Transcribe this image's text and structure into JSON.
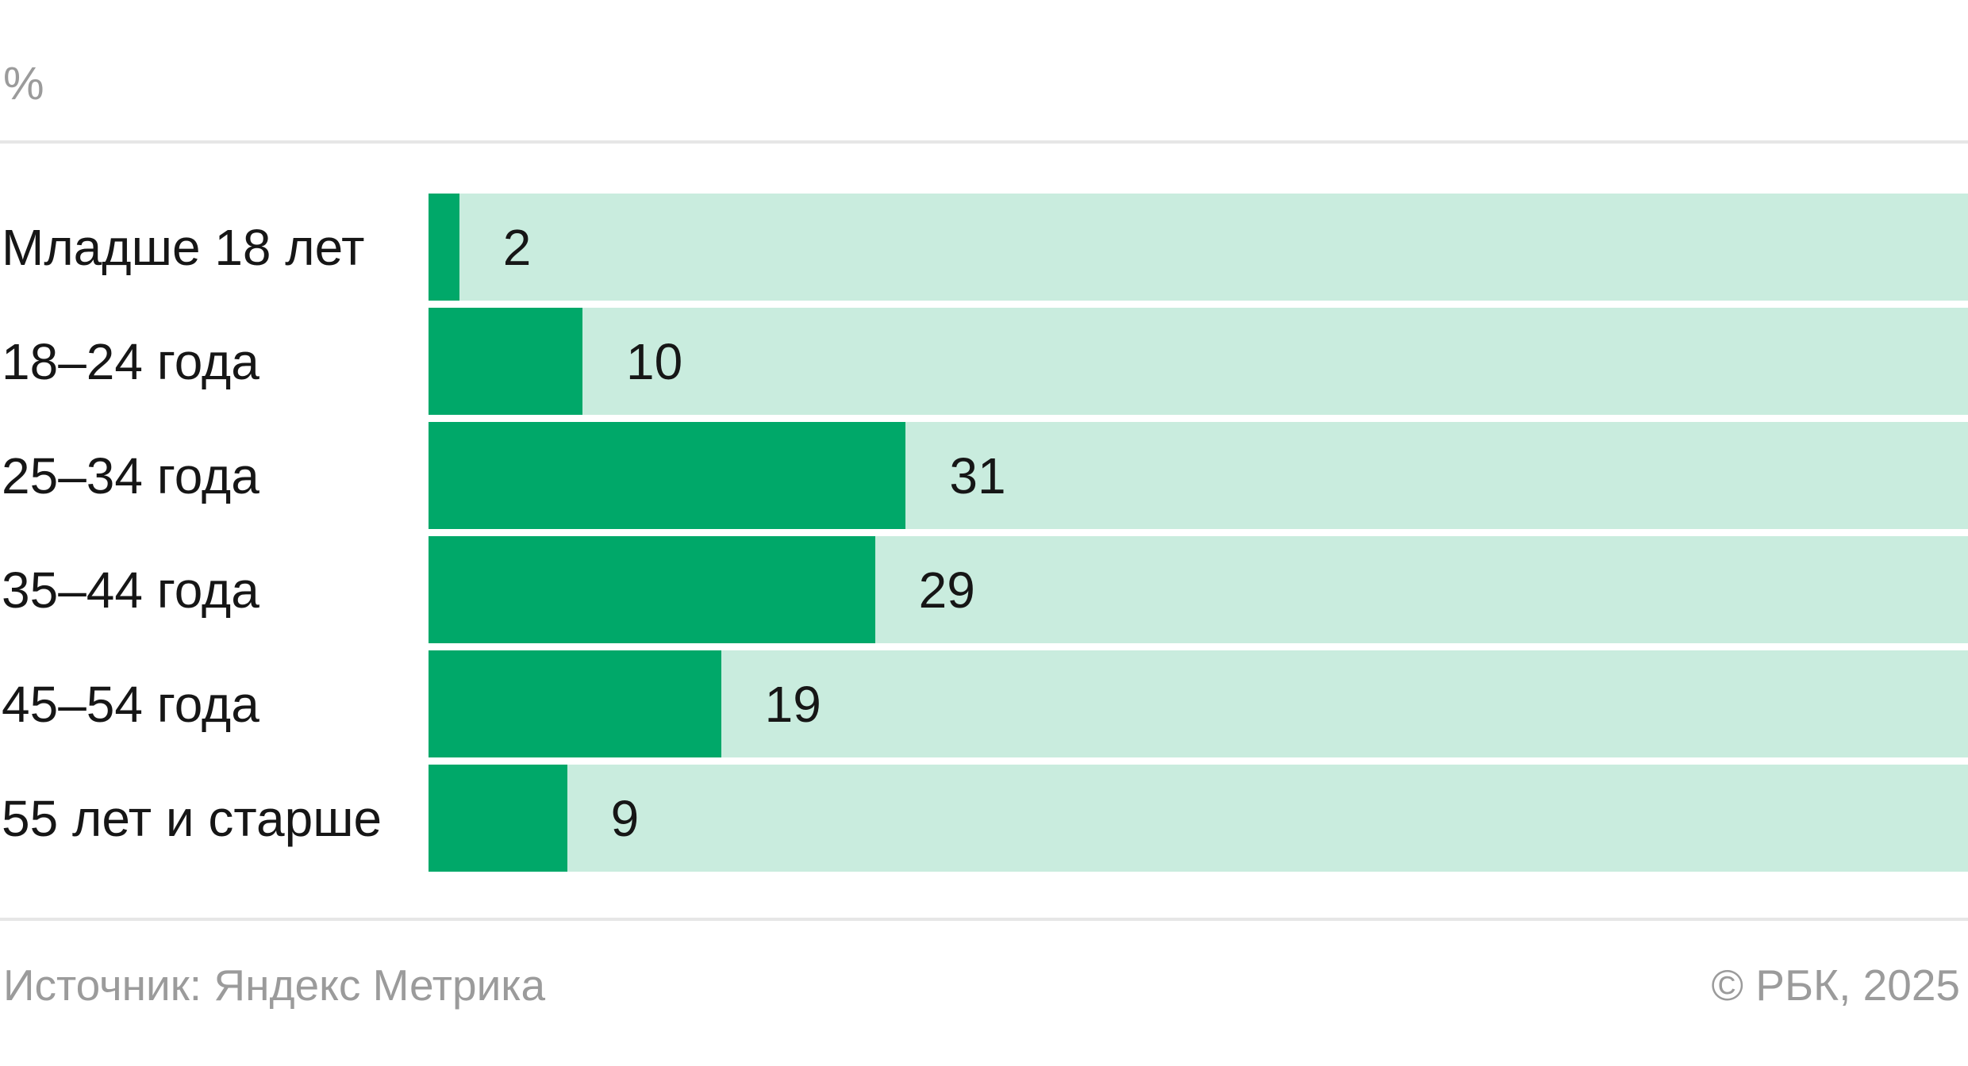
{
  "header": {
    "unit_label": "%"
  },
  "chart_data": {
    "type": "bar",
    "orientation": "horizontal",
    "unit": "%",
    "categories": [
      "Младше 18 лет",
      "18–24 года",
      "25–34 года",
      "35–44 года",
      "45–54 года",
      "55 лет и старше"
    ],
    "values": [
      2,
      10,
      31,
      29,
      19,
      9
    ],
    "xlim": [
      0,
      100
    ],
    "value_labels_shown": true,
    "track_background_full_scale": true,
    "grid": false,
    "legend": false,
    "title": ""
  },
  "footer": {
    "source": "Источник: Яндекс Метрика",
    "copyright": "© РБК, 2025"
  },
  "colors": {
    "bar": "#00a869",
    "track": "#c9ecde",
    "muted_text": "#9b9b9b",
    "divider": "#e6e6e6",
    "text": "#161616"
  }
}
